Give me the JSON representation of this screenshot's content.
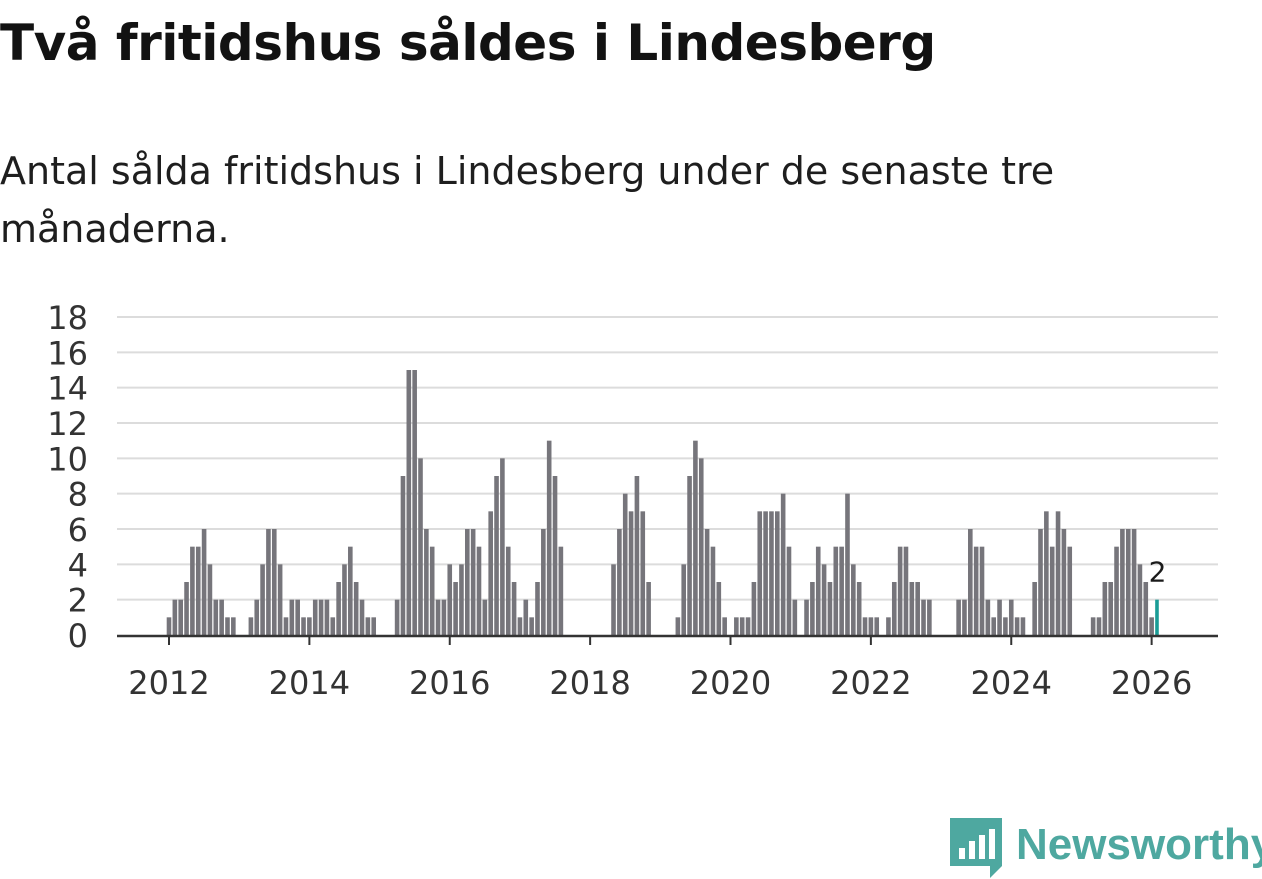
{
  "title": "Två fritidshus såldes i Lindesberg",
  "subtitle": "Antal sålda fritidshus i Lindesberg under de senaste tre månaderna.",
  "brand": {
    "name": "Newsworthy",
    "color": "#4ea8a0",
    "icon": "newsworthy-logo-icon"
  },
  "colors": {
    "bar": "#76757b",
    "highlight": "#1a9c96",
    "grid": "#dcdcdc",
    "axis": "#333333"
  },
  "chart_data": {
    "type": "bar",
    "title": "Två fritidshus såldes i Lindesberg",
    "xlabel": "",
    "ylabel": "",
    "ylim": [
      0,
      18
    ],
    "yticks": [
      0,
      2,
      4,
      6,
      8,
      10,
      12,
      14,
      16,
      18
    ],
    "xticks": [
      "2012",
      "2014",
      "2016",
      "2018",
      "2020",
      "2022",
      "2024",
      "2026"
    ],
    "x_start": "2011-03",
    "frequency": "monthly",
    "grid": true,
    "values": [
      0,
      0,
      0,
      0,
      0,
      0,
      0,
      0,
      0,
      0,
      1,
      2,
      2,
      3,
      5,
      5,
      6,
      4,
      2,
      2,
      1,
      1,
      0,
      0,
      1,
      2,
      4,
      6,
      6,
      4,
      1,
      2,
      2,
      1,
      1,
      2,
      2,
      2,
      1,
      3,
      4,
      5,
      3,
      2,
      1,
      1,
      0,
      0,
      0,
      2,
      9,
      15,
      15,
      10,
      6,
      5,
      2,
      2,
      4,
      3,
      4,
      6,
      6,
      5,
      2,
      7,
      9,
      10,
      5,
      3,
      1,
      2,
      1,
      3,
      6,
      11,
      9,
      5,
      0,
      0,
      0,
      0,
      0,
      0,
      0,
      0,
      4,
      6,
      8,
      7,
      9,
      7,
      3,
      0,
      0,
      0,
      0,
      1,
      4,
      9,
      11,
      10,
      6,
      5,
      3,
      1,
      0,
      1,
      1,
      1,
      3,
      7,
      7,
      7,
      7,
      8,
      5,
      2,
      0,
      2,
      3,
      5,
      4,
      3,
      5,
      5,
      8,
      4,
      3,
      1,
      1,
      1,
      0,
      1,
      3,
      5,
      5,
      3,
      3,
      2,
      2,
      0,
      0,
      0,
      0,
      2,
      2,
      6,
      5,
      5,
      2,
      1,
      2,
      1,
      2,
      1,
      1,
      0,
      3,
      6,
      7,
      5,
      7,
      6,
      5,
      0,
      0,
      0,
      1,
      1,
      3,
      3,
      5,
      6,
      6,
      6,
      4,
      3,
      1,
      2
    ],
    "highlight_last": true,
    "annotation": {
      "label": "2",
      "value": 2,
      "target": "last"
    }
  }
}
